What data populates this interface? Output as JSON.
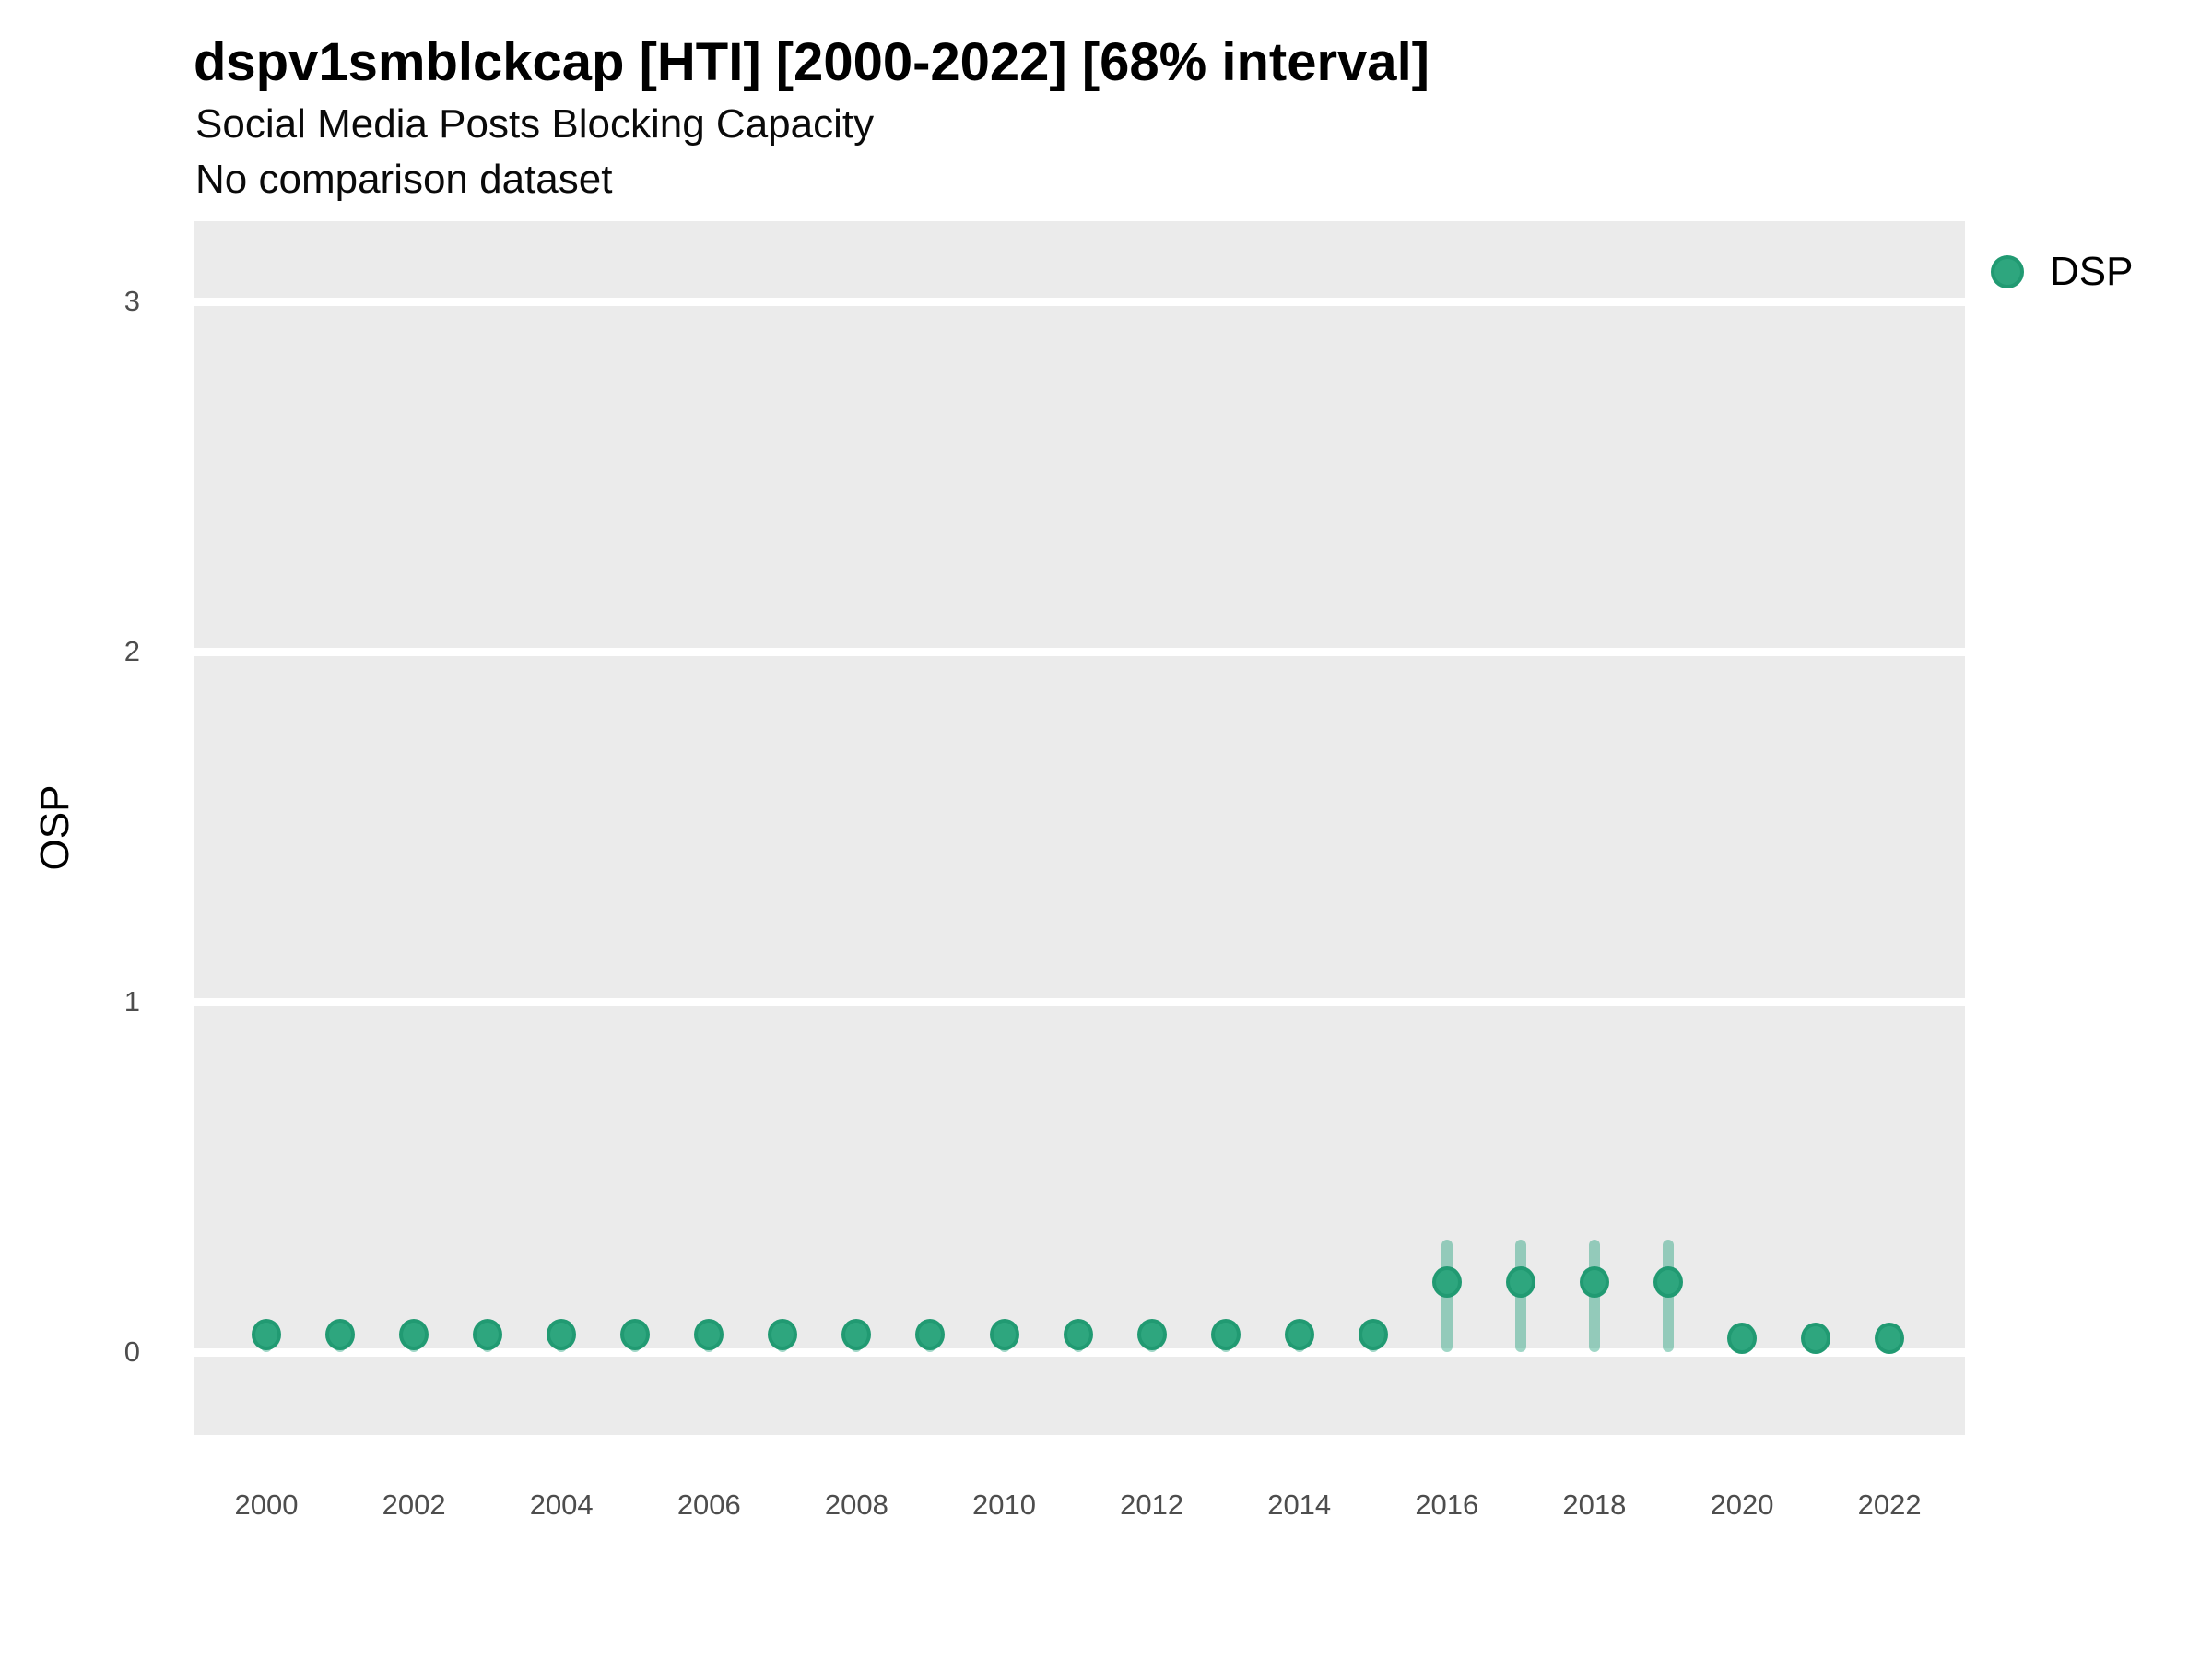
{
  "header": {
    "title": "dspv1smblckcap [HTI] [2000-2022] [68% interval]",
    "subtitle": "Social Media Posts Blocking Capacity",
    "note": "No comparison dataset"
  },
  "legend": {
    "label": "DSP",
    "position": "right"
  },
  "colors": {
    "point_fill": "#2EA67E",
    "point_stroke": "#219A72",
    "interval_bar": "rgba(27,158,119,0.42)",
    "panel_background": "#EBEBEB",
    "gridline": "#FFFFFF",
    "tick_text": "#4D4D4D",
    "title_text": "#000000"
  },
  "chart_data": {
    "type": "scatter",
    "title": "dspv1smblckcap [HTI] [2000-2022] [68% interval]",
    "subtitle": "Social Media Posts Blocking Capacity",
    "annotation": "No comparison dataset",
    "xlabel": "",
    "ylabel": "OSP",
    "legend_entries": [
      "DSP"
    ],
    "legend_position": "right",
    "grid": "major-y white lines on gray panel, no minor gridlines",
    "x_tick_labels": [
      2000,
      2002,
      2004,
      2006,
      2008,
      2010,
      2012,
      2014,
      2016,
      2018,
      2020,
      2022
    ],
    "y_tick_labels": [
      0,
      1,
      2,
      3
    ],
    "xlim": [
      1999.0,
      2023.0
    ],
    "ylim": [
      -0.24,
      3.23
    ],
    "error_interval": "68%",
    "series": [
      {
        "name": "DSP",
        "points": [
          {
            "year": 2000,
            "value": 0.05,
            "lo": 0.0,
            "hi": 0.09
          },
          {
            "year": 2001,
            "value": 0.05,
            "lo": 0.0,
            "hi": 0.09
          },
          {
            "year": 2002,
            "value": 0.05,
            "lo": 0.0,
            "hi": 0.09
          },
          {
            "year": 2003,
            "value": 0.05,
            "lo": 0.0,
            "hi": 0.09
          },
          {
            "year": 2004,
            "value": 0.05,
            "lo": 0.0,
            "hi": 0.09
          },
          {
            "year": 2005,
            "value": 0.05,
            "lo": 0.0,
            "hi": 0.09
          },
          {
            "year": 2006,
            "value": 0.05,
            "lo": 0.0,
            "hi": 0.09
          },
          {
            "year": 2007,
            "value": 0.05,
            "lo": 0.0,
            "hi": 0.09
          },
          {
            "year": 2008,
            "value": 0.05,
            "lo": 0.0,
            "hi": 0.09
          },
          {
            "year": 2009,
            "value": 0.05,
            "lo": 0.0,
            "hi": 0.09
          },
          {
            "year": 2010,
            "value": 0.05,
            "lo": 0.0,
            "hi": 0.09
          },
          {
            "year": 2011,
            "value": 0.05,
            "lo": 0.0,
            "hi": 0.09
          },
          {
            "year": 2012,
            "value": 0.05,
            "lo": 0.0,
            "hi": 0.09
          },
          {
            "year": 2013,
            "value": 0.05,
            "lo": 0.0,
            "hi": 0.09
          },
          {
            "year": 2014,
            "value": 0.05,
            "lo": 0.0,
            "hi": 0.09
          },
          {
            "year": 2015,
            "value": 0.05,
            "lo": 0.0,
            "hi": 0.09
          },
          {
            "year": 2016,
            "value": 0.2,
            "lo": 0.0,
            "hi": 0.32
          },
          {
            "year": 2017,
            "value": 0.2,
            "lo": 0.0,
            "hi": 0.32
          },
          {
            "year": 2018,
            "value": 0.2,
            "lo": 0.0,
            "hi": 0.32
          },
          {
            "year": 2019,
            "value": 0.2,
            "lo": 0.0,
            "hi": 0.32
          },
          {
            "year": 2020,
            "value": 0.04,
            "lo": 0.0,
            "hi": 0.06
          },
          {
            "year": 2021,
            "value": 0.04,
            "lo": 0.0,
            "hi": 0.06
          },
          {
            "year": 2022,
            "value": 0.04,
            "lo": 0.0,
            "hi": 0.06
          }
        ]
      }
    ]
  }
}
